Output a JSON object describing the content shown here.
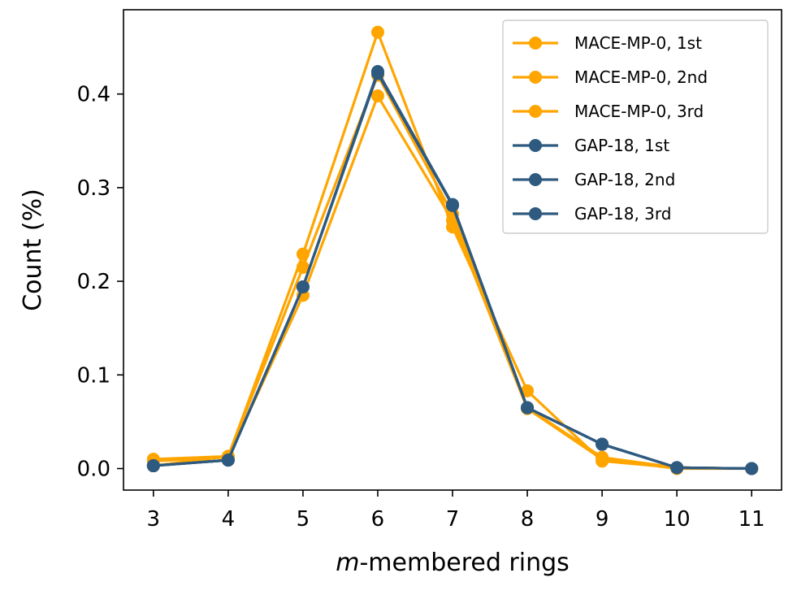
{
  "chart_data": {
    "type": "line",
    "title": "",
    "xlabel_italic": "m",
    "xlabel_rest": "-membered rings",
    "ylabel": "Count (%)",
    "x": [
      3,
      4,
      5,
      6,
      7,
      8,
      9,
      10,
      11
    ],
    "xlim": [
      2.6,
      11.4
    ],
    "ylim": [
      -0.023,
      0.49
    ],
    "yticks": [
      0.0,
      0.1,
      0.2,
      0.3,
      0.4
    ],
    "ytick_labels": [
      "0.0",
      "0.1",
      "0.2",
      "0.3",
      "0.4"
    ],
    "xtick_labels": [
      "3",
      "4",
      "5",
      "6",
      "7",
      "8",
      "9",
      "10",
      "11"
    ],
    "grid": false,
    "legend_position": "top-right",
    "series": [
      {
        "name": "MACE-MP-0, 1st",
        "color": "#FFA500",
        "values": [
          0.003,
          0.013,
          0.229,
          0.466,
          0.258,
          0.083,
          0.008,
          0.001,
          0.0
        ]
      },
      {
        "name": "MACE-MP-0, 2nd",
        "color": "#FFA500",
        "values": [
          0.008,
          0.012,
          0.185,
          0.398,
          0.265,
          0.064,
          0.01,
          0.0,
          0.0
        ]
      },
      {
        "name": "MACE-MP-0, 3rd",
        "color": "#FFA500",
        "values": [
          0.01,
          0.013,
          0.215,
          0.42,
          0.272,
          0.065,
          0.012,
          0.001,
          0.0
        ]
      },
      {
        "name": "GAP-18, 1st",
        "color": "#2E5A80",
        "values": [
          0.003,
          0.009,
          0.194,
          0.424,
          0.282,
          0.065,
          0.026,
          0.001,
          0.0
        ]
      },
      {
        "name": "GAP-18, 2nd",
        "color": "#2E5A80",
        "values": [
          0.003,
          0.009,
          0.194,
          0.423,
          0.281,
          0.065,
          0.026,
          0.001,
          0.0
        ]
      },
      {
        "name": "GAP-18, 3rd",
        "color": "#2E5A80",
        "values": [
          0.003,
          0.009,
          0.194,
          0.422,
          0.281,
          0.065,
          0.026,
          0.001,
          0.0
        ]
      }
    ]
  }
}
